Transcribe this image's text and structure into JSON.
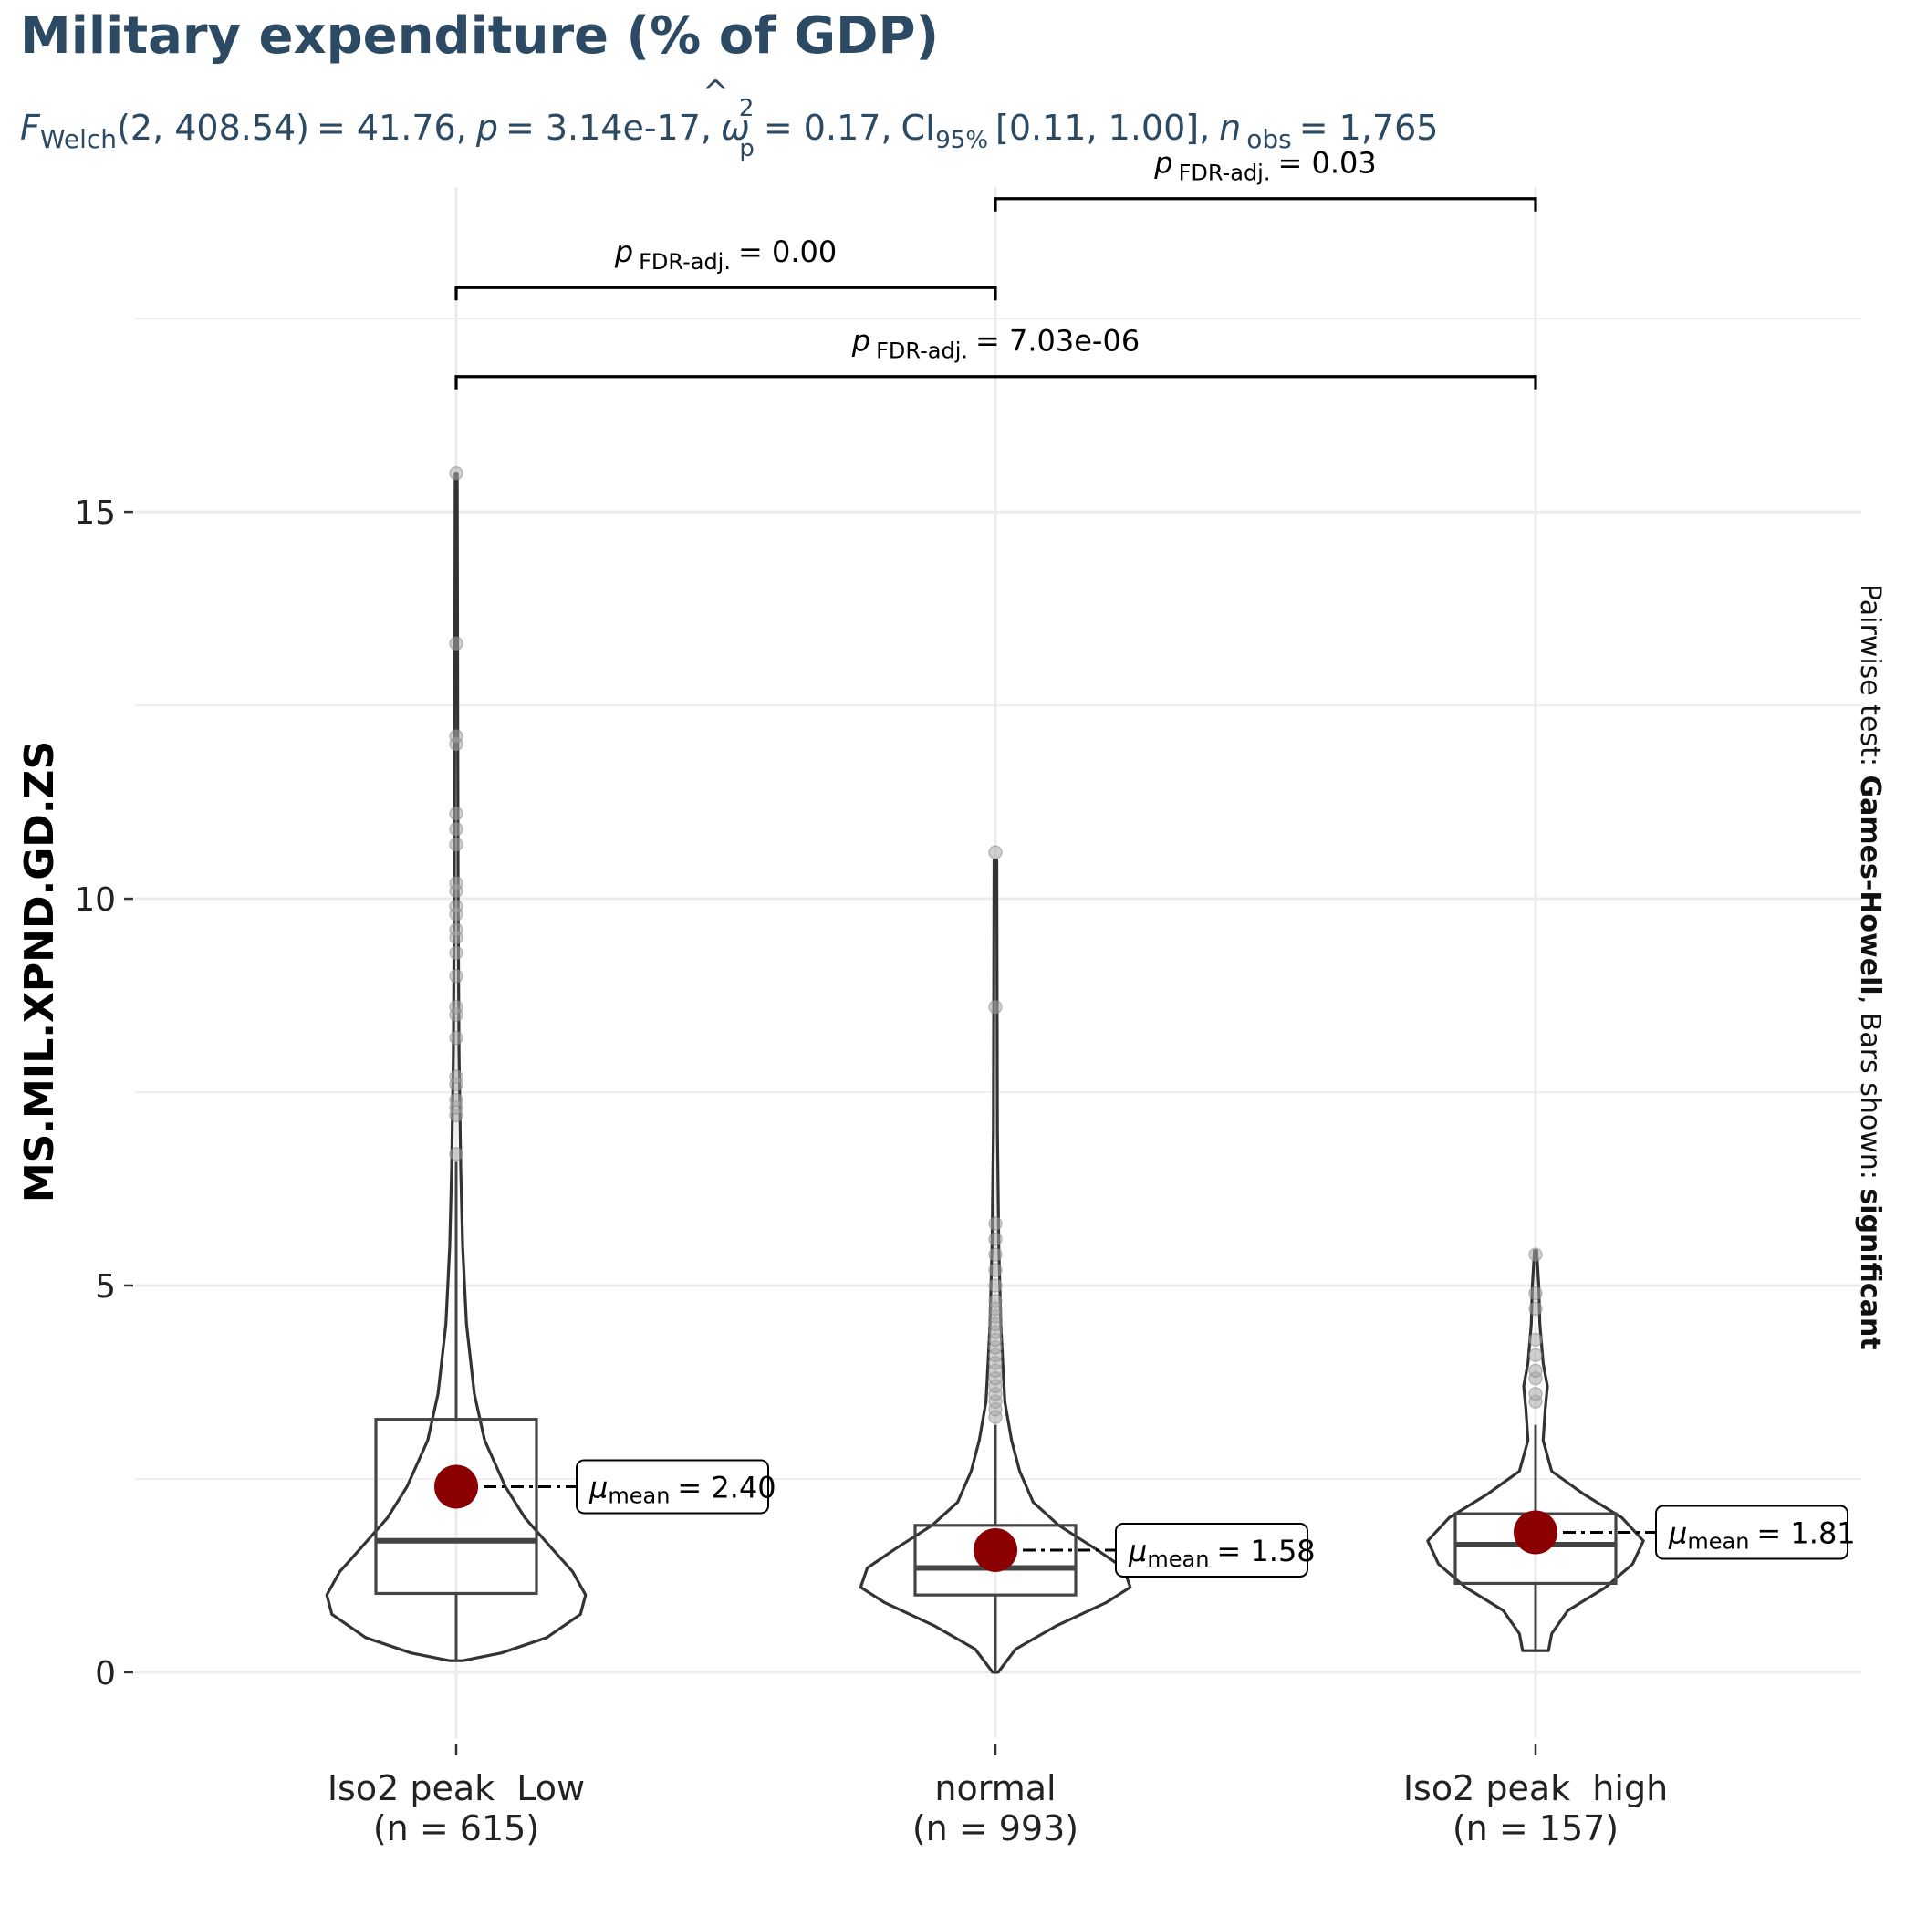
{
  "chart_data": {
    "type": "violin-box",
    "title": "Military expenditure (% of GDP)",
    "subtitle": {
      "f_symbol": "F",
      "f_sub": "Welch",
      "f_args": "(2, 408.54)",
      "f_value": "= 41.76,",
      "p_symbol": "p",
      "p_value": "= 3.14e-17,",
      "omega_symbol": "ω",
      "omega_sup": "2",
      "omega_sub": "p",
      "omega_value": "= 0.17,",
      "ci_symbol": "CI",
      "ci_sub": "95%",
      "ci_value": "[0.11, 1.00],",
      "n_symbol": "n",
      "n_sub": "obs",
      "n_value": "= 1,765"
    },
    "ylabel": "MS.MIL.XPND.GD.ZS",
    "xlabel": "",
    "ylim": [
      -0.85,
      19.2
    ],
    "y_ticks": [
      0,
      5,
      10,
      15
    ],
    "grid": true,
    "caption": {
      "prefix": "Pairwise test: ",
      "test": "Games-Howell",
      "middle": ", Bars shown: ",
      "shown": "significant"
    },
    "groups": [
      {
        "label": "Iso2 peak  Low",
        "n_label": "(n = 615)",
        "box": {
          "q1": 1.02,
          "median": 1.7,
          "q3": 3.27,
          "whisker_low": 0.15,
          "whisker_high": 6.6
        },
        "violin": [
          [
            0.15,
            0.05
          ],
          [
            0.25,
            0.35
          ],
          [
            0.45,
            0.7
          ],
          [
            0.75,
            0.96
          ],
          [
            1.0,
            1.0
          ],
          [
            1.3,
            0.9
          ],
          [
            1.6,
            0.74
          ],
          [
            2.0,
            0.53
          ],
          [
            2.4,
            0.38
          ],
          [
            3.0,
            0.22
          ],
          [
            3.6,
            0.14
          ],
          [
            4.5,
            0.08
          ],
          [
            5.5,
            0.05
          ],
          [
            6.5,
            0.035
          ],
          [
            8.0,
            0.022
          ],
          [
            10,
            0.015
          ],
          [
            12,
            0.012
          ],
          [
            15.5,
            0.008
          ]
        ],
        "violin_halfwidth_max": 0.24,
        "outliers": [
          6.7,
          7.2,
          7.3,
          7.4,
          7.6,
          7.7,
          8.2,
          8.5,
          8.6,
          9.0,
          9.3,
          9.5,
          9.6,
          9.8,
          9.9,
          10.1,
          10.2,
          10.7,
          10.9,
          11.1,
          12.0,
          12.1,
          13.3,
          15.5
        ],
        "mean": 2.4,
        "mean_label_symbol": "μ",
        "mean_label_sub": "mean",
        "mean_label_value": "= 2.40"
      },
      {
        "label": "normal",
        "n_label": "(n = 993)",
        "box": {
          "q1": 1.0,
          "median": 1.35,
          "q3": 1.9,
          "whisker_low": 0.0,
          "whisker_high": 3.2
        },
        "violin": [
          [
            0.0,
            0.02
          ],
          [
            0.3,
            0.15
          ],
          [
            0.6,
            0.45
          ],
          [
            0.9,
            0.82
          ],
          [
            1.1,
            1.0
          ],
          [
            1.35,
            0.95
          ],
          [
            1.6,
            0.74
          ],
          [
            1.9,
            0.47
          ],
          [
            2.2,
            0.28
          ],
          [
            2.6,
            0.18
          ],
          [
            3.0,
            0.12
          ],
          [
            3.5,
            0.07
          ],
          [
            4.5,
            0.04
          ],
          [
            5.5,
            0.025
          ],
          [
            7.0,
            0.015
          ],
          [
            10.5,
            0.01
          ]
        ],
        "violin_halfwidth_max": 0.25,
        "outliers": [
          3.3,
          3.4,
          3.5,
          3.6,
          3.7,
          3.8,
          3.9,
          4.0,
          4.1,
          4.2,
          4.3,
          4.4,
          4.5,
          4.6,
          4.7,
          4.8,
          5.0,
          5.2,
          5.4,
          5.6,
          5.8,
          8.6,
          10.6
        ],
        "mean": 1.58,
        "mean_label_symbol": "μ",
        "mean_label_sub": "mean",
        "mean_label_value": "= 1.58"
      },
      {
        "label": "Iso2 peak  high",
        "n_label": "(n = 157)",
        "box": {
          "q1": 1.15,
          "median": 1.65,
          "q3": 2.05,
          "whisker_low": 0.28,
          "whisker_high": 3.2
        },
        "violin": [
          [
            0.28,
            0.12
          ],
          [
            0.5,
            0.15
          ],
          [
            0.8,
            0.3
          ],
          [
            1.1,
            0.65
          ],
          [
            1.4,
            0.9
          ],
          [
            1.7,
            1.0
          ],
          [
            2.0,
            0.8
          ],
          [
            2.3,
            0.45
          ],
          [
            2.6,
            0.15
          ],
          [
            3.0,
            0.07
          ],
          [
            3.4,
            0.09
          ],
          [
            3.7,
            0.11
          ],
          [
            4.0,
            0.07
          ],
          [
            4.5,
            0.04
          ],
          [
            5.0,
            0.03
          ],
          [
            5.45,
            0.01
          ]
        ],
        "violin_halfwidth_max": 0.2,
        "outliers": [
          3.5,
          3.6,
          3.8,
          3.9,
          4.1,
          4.3,
          4.7,
          4.9,
          5.4
        ],
        "mean": 1.81,
        "mean_label_symbol": "μ",
        "mean_label_sub": "mean",
        "mean_label_value": "= 1.81"
      }
    ],
    "comparisons": [
      {
        "from": 0,
        "to": 1,
        "level": 17.9,
        "p_symbol": "p",
        "p_sub": "FDR-adj.",
        "p_value": "= 0.00"
      },
      {
        "from": 1,
        "to": 2,
        "level": 19.05,
        "p_symbol": "p",
        "p_sub": "FDR-adj.",
        "p_value": "= 0.03"
      },
      {
        "from": 0,
        "to": 2,
        "level": 16.75,
        "p_symbol": "p",
        "p_sub": "FDR-adj.",
        "p_value": "= 7.03e-06"
      }
    ],
    "colors": {
      "title": "#2c4a63",
      "mean_point": "#8b0000",
      "grid": "#ebebeb",
      "outline": "#333333",
      "outlier": "#aaaaaa",
      "box": "#444444"
    }
  }
}
